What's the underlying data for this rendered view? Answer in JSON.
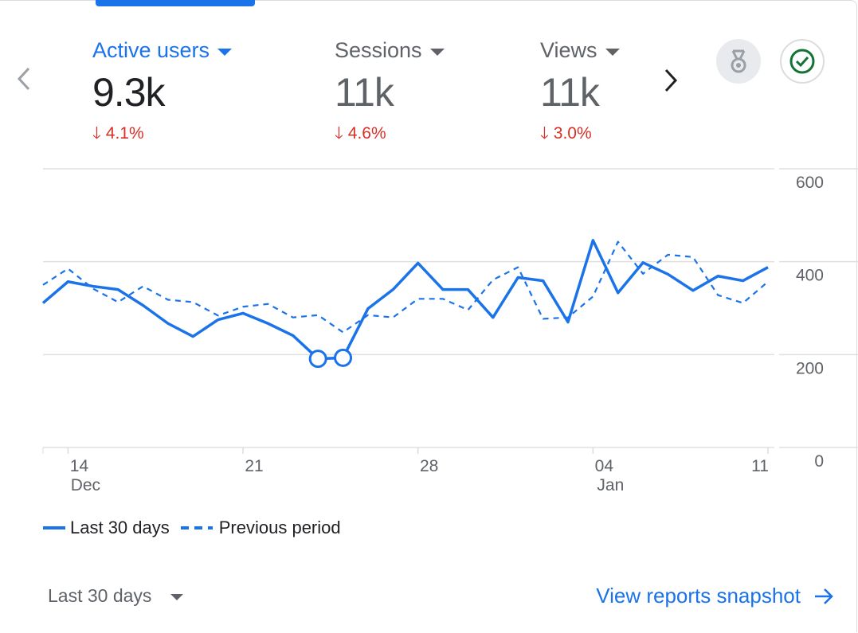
{
  "metrics": [
    {
      "label": "Active users",
      "value": "9.3k",
      "delta": "4.1%",
      "active": true
    },
    {
      "label": "Sessions",
      "value": "11k",
      "delta": "4.6%",
      "active": false
    },
    {
      "label": "Views",
      "value": "11k",
      "delta": "3.0%",
      "active": false
    }
  ],
  "icons": {
    "prev": "chevron-left-icon",
    "next": "chevron-right-icon",
    "medal": "medal-icon",
    "check": "check-circle-icon"
  },
  "colors": {
    "accent": "#1a73e8",
    "negative": "#d93025",
    "success": "#137333"
  },
  "chart_data": {
    "type": "line",
    "x": [
      "Dec 13",
      "Dec 14",
      "Dec 15",
      "Dec 16",
      "Dec 17",
      "Dec 18",
      "Dec 19",
      "Dec 20",
      "Dec 21",
      "Dec 22",
      "Dec 23",
      "Dec 24",
      "Dec 25",
      "Dec 26",
      "Dec 27",
      "Dec 28",
      "Dec 29",
      "Dec 30",
      "Dec 31",
      "Jan 1",
      "Jan 2",
      "Jan 3",
      "Jan 4",
      "Jan 5",
      "Jan 6",
      "Jan 7",
      "Jan 8",
      "Jan 9",
      "Jan 10",
      "Jan 11"
    ],
    "series": [
      {
        "name": "Last 30 days",
        "style": "solid",
        "values": [
          311,
          357,
          347,
          340,
          306,
          267,
          239,
          275,
          289,
          267,
          241,
          191,
          193,
          299,
          340,
          397,
          340,
          340,
          280,
          366,
          359,
          270,
          446,
          333,
          398,
          373,
          338,
          369,
          359,
          388
        ],
        "highlighted_indices": [
          11,
          12
        ]
      },
      {
        "name": "Previous period",
        "style": "dashed",
        "values": [
          350,
          385,
          342,
          313,
          347,
          318,
          313,
          284,
          303,
          309,
          280,
          285,
          248,
          285,
          280,
          320,
          320,
          296,
          361,
          388,
          277,
          280,
          325,
          443,
          374,
          415,
          410,
          328,
          311,
          357
        ]
      }
    ],
    "ylim": [
      0,
      600
    ],
    "yticks": [
      "0",
      "200",
      "400",
      "600"
    ],
    "xticks": [
      {
        "index": 1,
        "label": "14",
        "sub": "Dec"
      },
      {
        "index": 8,
        "label": "21",
        "sub": ""
      },
      {
        "index": 15,
        "label": "28",
        "sub": ""
      },
      {
        "index": 22,
        "label": "04",
        "sub": "Jan"
      },
      {
        "index": 29,
        "label": "11",
        "sub": ""
      }
    ],
    "grid": true,
    "legend_position": "bottom-left"
  },
  "legend": {
    "current": "Last 30 days",
    "previous": "Previous period"
  },
  "footer": {
    "range": "Last 30 days",
    "link": "View reports snapshot"
  }
}
